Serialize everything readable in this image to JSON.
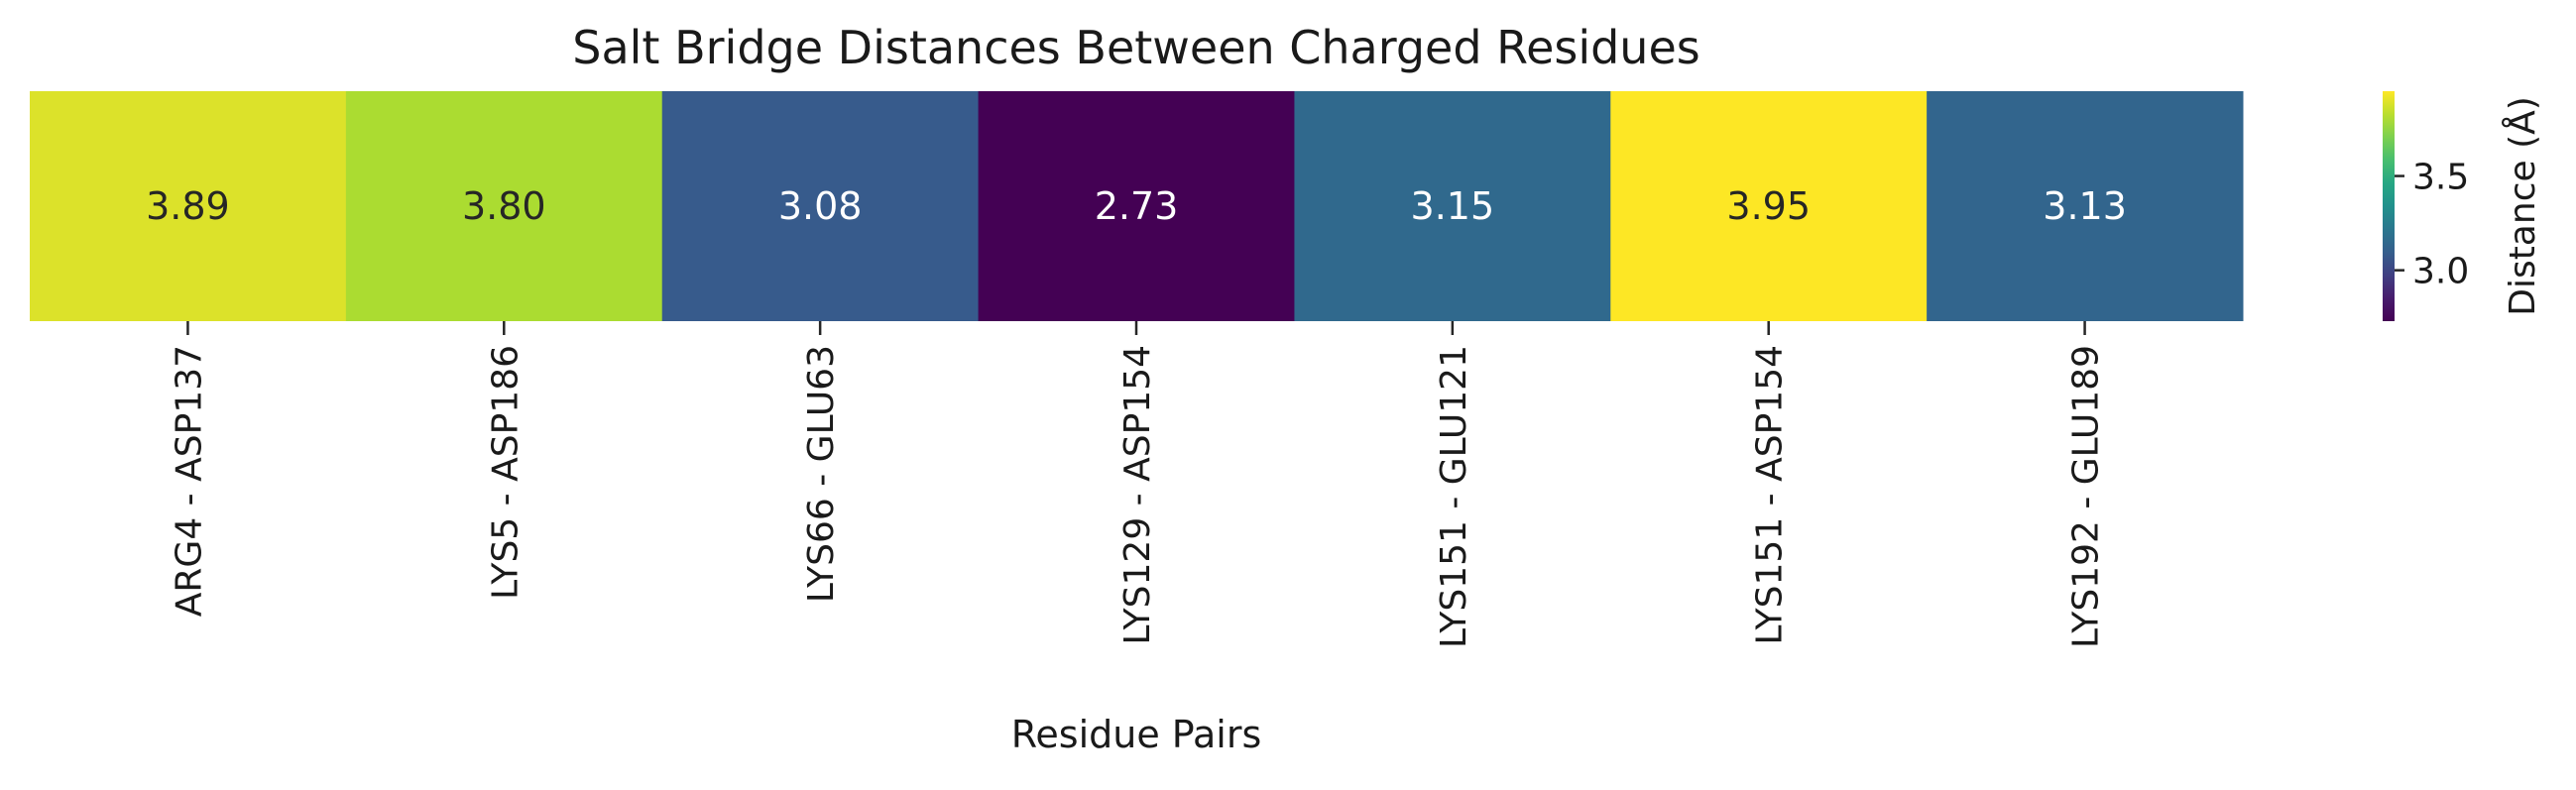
{
  "chart_data": {
    "type": "heatmap",
    "title": "Salt Bridge Distances Between Charged Residues",
    "xlabel": "Residue Pairs",
    "ylabel": "",
    "categories": [
      "ARG4 - ASP137",
      "LYS5 - ASP186",
      "LYS66 - GLU63",
      "LYS129 - ASP154",
      "LYS151 - GLU121",
      "LYS151 - ASP154",
      "LYS192 - GLU189"
    ],
    "values": [
      3.89,
      3.8,
      3.08,
      2.73,
      3.15,
      3.95,
      3.13
    ],
    "value_labels": [
      "3.89",
      "3.80",
      "3.08",
      "2.73",
      "3.15",
      "3.95",
      "3.13"
    ],
    "colormap": "viridis",
    "colorbar": {
      "label": "Distance (Å)",
      "ticks": [
        3.0,
        3.5
      ],
      "tick_labels": [
        "3.0",
        "3.5"
      ],
      "range": [
        2.73,
        3.95
      ]
    },
    "annotation_colors": {
      "dark": "#262626",
      "light": "#ffffff"
    }
  }
}
